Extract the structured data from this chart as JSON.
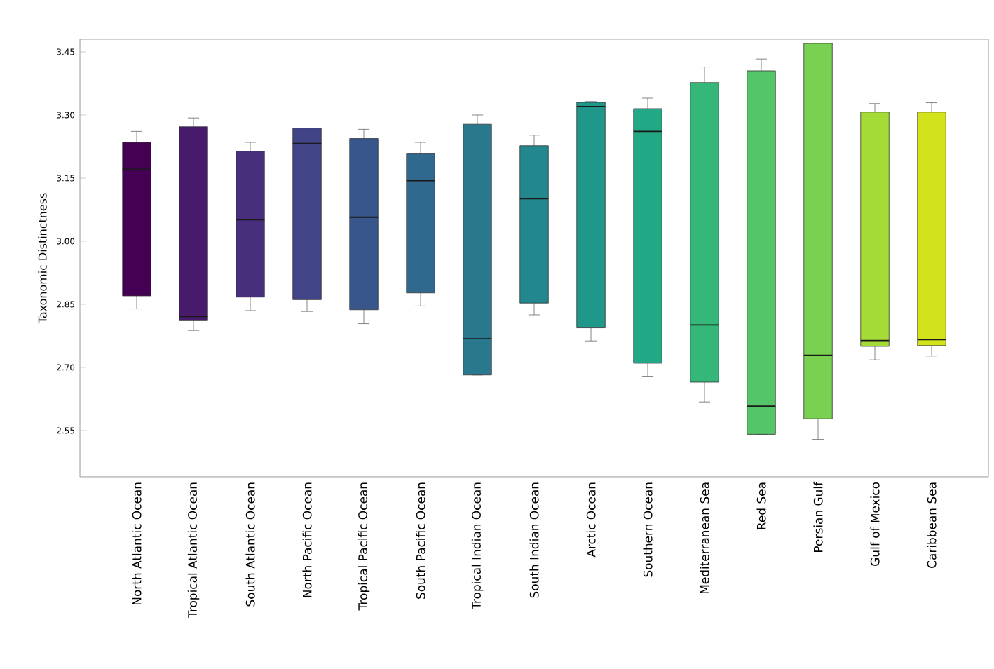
{
  "chart_data": {
    "type": "box",
    "ylabel": "Taxonomic Distinctness",
    "categories": [
      "North Atlantic Ocean",
      "Tropical Atlantic Ocean",
      "South Atlantic Ocean",
      "North Pacific Ocean",
      "Tropical Pacific Ocean",
      "South Pacific Ocean",
      "Tropical Indian Ocean",
      "South Indian Ocean",
      "Arctic Ocean",
      "Southern Ocean",
      "Mediterranean Sea",
      "Red Sea",
      "Persian Gulf",
      "Gulf of Mexico",
      "Caribbean Sea"
    ],
    "colors": [
      "#440154",
      "#481a6c",
      "#472f7d",
      "#414487",
      "#39568c",
      "#31688e",
      "#2a788e",
      "#23888e",
      "#1f988b",
      "#22a884",
      "#35b779",
      "#54c568",
      "#7ad151",
      "#a5db36",
      "#d2e21b"
    ],
    "boxes": [
      {
        "low": 2.839,
        "q1": 2.87,
        "median": 3.171,
        "q3": 3.235,
        "high": 3.261
      },
      {
        "low": 2.788,
        "q1": 2.811,
        "median": 2.821,
        "q3": 3.272,
        "high": 3.293
      },
      {
        "low": 2.835,
        "q1": 2.867,
        "median": 3.051,
        "q3": 3.214,
        "high": 3.235
      },
      {
        "low": 2.833,
        "q1": 2.861,
        "median": 3.232,
        "q3": 3.269,
        "high": 3.269
      },
      {
        "low": 2.804,
        "q1": 2.837,
        "median": 3.057,
        "q3": 3.244,
        "high": 3.266
      },
      {
        "low": 2.846,
        "q1": 2.877,
        "median": 3.144,
        "q3": 3.209,
        "high": 3.235
      },
      {
        "low": 2.682,
        "q1": 2.682,
        "median": 2.768,
        "q3": 3.278,
        "high": 3.3
      },
      {
        "low": 2.825,
        "q1": 2.853,
        "median": 3.101,
        "q3": 3.227,
        "high": 3.252
      },
      {
        "low": 2.763,
        "q1": 2.794,
        "median": 3.32,
        "q3": 3.33,
        "high": 3.332
      },
      {
        "low": 2.679,
        "q1": 2.71,
        "median": 3.261,
        "q3": 3.315,
        "high": 3.34
      },
      {
        "low": 2.618,
        "q1": 2.665,
        "median": 2.801,
        "q3": 3.377,
        "high": 3.414
      },
      {
        "low": 2.541,
        "q1": 2.541,
        "median": 2.608,
        "q3": 3.405,
        "high": 3.433
      },
      {
        "low": 2.529,
        "q1": 2.578,
        "median": 2.729,
        "q3": 3.47,
        "high": 3.47
      },
      {
        "low": 2.718,
        "q1": 2.75,
        "median": 2.764,
        "q3": 3.307,
        "high": 3.327
      },
      {
        "low": 2.727,
        "q1": 2.752,
        "median": 2.766,
        "q3": 3.307,
        "high": 3.329
      }
    ],
    "ylim": [
      2.44,
      3.48
    ],
    "yticks": [
      2.55,
      {
        "value": 2.7,
        "label": "2.70"
      },
      2.85,
      {
        "value": 3.0,
        "label": "3.00"
      },
      3.15,
      {
        "value": 3.3,
        "label": "3.30"
      },
      3.45
    ]
  }
}
